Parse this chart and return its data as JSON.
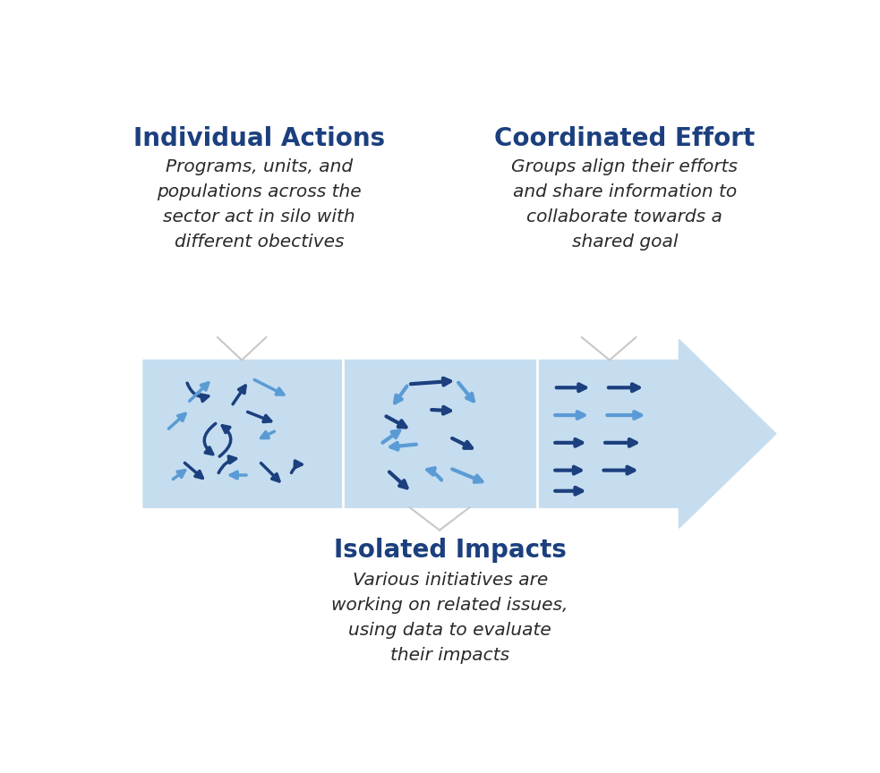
{
  "bg_color": "#ffffff",
  "arrow_shape_color": "#c5ddef",
  "title_left": "Individual Actions",
  "title_right": "Coordinated Effort",
  "subtitle_left": "Programs, units, and\npopulations across the\nsector act in silo with\ndifferent obectives",
  "subtitle_right": "Groups align their efforts\nand share information to\ncollaborate towards a\nshared goal",
  "bottom_title": "Isolated Impacts",
  "bottom_text": "Various initiatives are\nworking on related issues,\nusing data to evaluate\ntheir impacts",
  "title_color": "#1c3f7e",
  "dark_arrow_color": "#1c3f7e",
  "light_arrow_color": "#5b9bd5",
  "connector_color": "#c8c8c8"
}
